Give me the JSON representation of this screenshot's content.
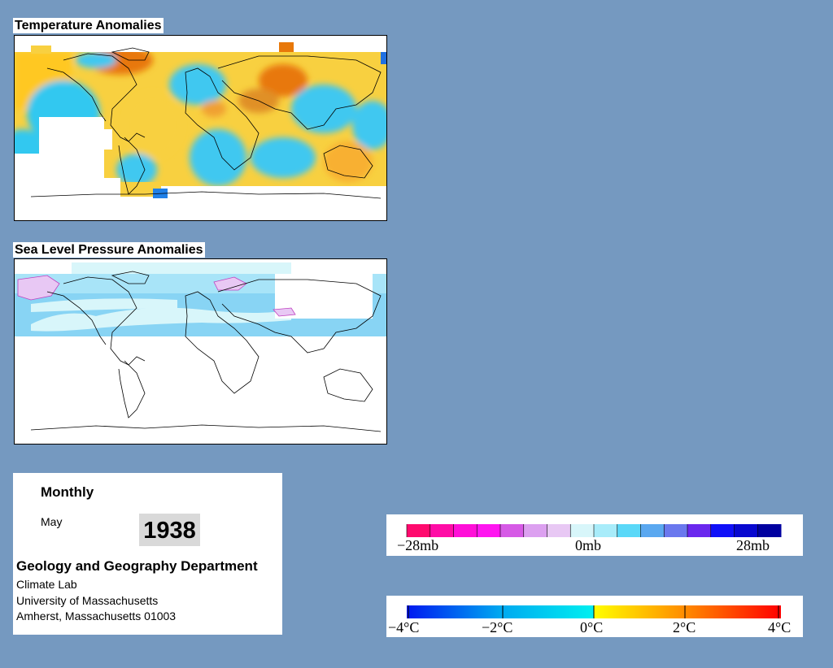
{
  "temperature_panel": {
    "title": "Temperature Anomalies"
  },
  "pressure_panel": {
    "title": "Sea Level Pressure Anomalies"
  },
  "info": {
    "period": "Monthly",
    "month": "May",
    "year": "1938",
    "department": "Geology and Geography Department",
    "lines": [
      "Climate Lab",
      "University of Massachusetts",
      "Amherst, Massachusetts 01003"
    ]
  },
  "pressure_legend": {
    "labels": [
      "−28mb",
      "0mb",
      "28mb"
    ],
    "colors": [
      "#ff0a6e",
      "#ff0ca6",
      "#ff0fd8",
      "#ff16f0",
      "#d65ae6",
      "#dca0f0",
      "#e8c8f4",
      "#d8f6fa",
      "#a8ecfa",
      "#5ad8f8",
      "#5aa8f0",
      "#6a78ee",
      "#6a28ee",
      "#1010f8",
      "#0808d0",
      "#0000a0"
    ]
  },
  "temperature_legend": {
    "labels": [
      "−4°C",
      "−2°C",
      "0°C",
      "2°C",
      "4°C"
    ],
    "colors": [
      "#0018f0",
      "#00a8f0",
      "#00f0f0",
      "#ffff00",
      "#ff8800",
      "#ff0000"
    ]
  }
}
